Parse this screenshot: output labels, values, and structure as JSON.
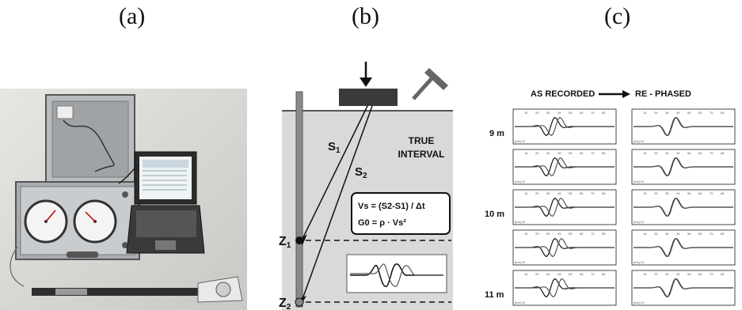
{
  "labels": {
    "a": "(a)",
    "b": "(b)",
    "c": "(c)"
  },
  "panel_b": {
    "true": "TRUE",
    "interval": "INTERVAL",
    "s1": "S",
    "s1_sub": "1",
    "s2": "S",
    "s2_sub": "2",
    "vs_formula": "Vs = (S2-S1) / Δt",
    "g0_formula": "G0 = ρ · Vs²",
    "z1": "Z",
    "z1_sub": "1",
    "z2": "Z",
    "z2_sub": "2"
  },
  "panel_c": {
    "as_recorded": "AS RECORDED",
    "re_phased": "RE - PHASED",
    "depth_labels": [
      "9 m",
      "10 m",
      "11 m"
    ],
    "ticks": [
      "15",
      "25",
      "35",
      "45",
      "55",
      "65",
      "75",
      "85"
    ],
    "unit": "[ms] 10"
  },
  "colors": {
    "soil": "#d9d9d9",
    "rod": "#8a8a8a",
    "plate": "#3a3a3a",
    "trace": "#111111"
  }
}
